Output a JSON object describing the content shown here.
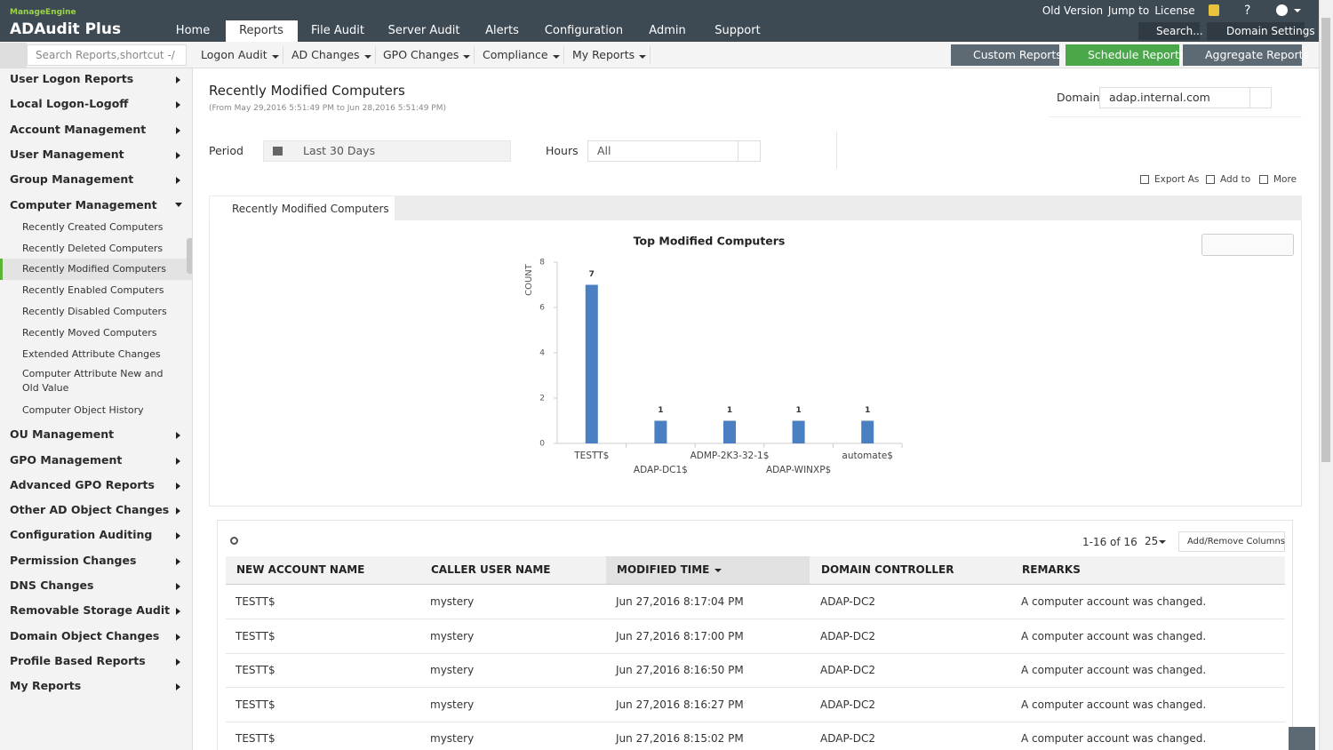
{
  "header": {
    "brand": "ManageEngine",
    "product": "ADAudit Plus",
    "nav": [
      "Home",
      "Reports",
      "File Audit",
      "Server Audit",
      "Alerts",
      "Configuration",
      "Admin",
      "Support"
    ],
    "top_links": [
      "Old Version",
      "Jump to",
      "License"
    ],
    "search": "Search...",
    "domain_settings": "Domain Settings"
  },
  "toolbar": {
    "search_placeholder": "Search Reports,shortcut -/",
    "menus": [
      "Logon Audit",
      "AD Changes",
      "GPO Changes",
      "Compliance",
      "My Reports"
    ],
    "buttons": [
      "Custom Reports",
      "Schedule Reports",
      "Aggregate Reports"
    ]
  },
  "sidebar": {
    "items": [
      {
        "label": "User Logon Reports"
      },
      {
        "label": "Local Logon-Logoff"
      },
      {
        "label": "Account Management"
      },
      {
        "label": "User Management"
      },
      {
        "label": "Group Management"
      },
      {
        "label": "Computer Management",
        "children": [
          "Recently Created Computers",
          "Recently Deleted Computers",
          "Recently Modified Computers",
          "Recently Enabled Computers",
          "Recently Disabled Computers",
          "Recently Moved Computers",
          "Extended Attribute Changes",
          "Computer Attribute New and Old Value",
          "Computer Object History"
        ]
      },
      {
        "label": "OU Management"
      },
      {
        "label": "GPO Management"
      },
      {
        "label": "Advanced GPO Reports"
      },
      {
        "label": "Other AD Object Changes"
      },
      {
        "label": "Configuration Auditing"
      },
      {
        "label": "Permission Changes"
      },
      {
        "label": "DNS Changes"
      },
      {
        "label": "Removable Storage Audit"
      },
      {
        "label": "Domain Object Changes"
      },
      {
        "label": "Profile Based Reports"
      },
      {
        "label": "My Reports"
      }
    ]
  },
  "report": {
    "title": "Recently Modified Computers",
    "range": "(From May 29,2016 5:51:49 PM to Jun 28,2016 5:51:49 PM)",
    "domain_label": "Domain",
    "domain": "adap.internal.com",
    "period_label": "Period",
    "period": "Last 30 Days",
    "hours_label": "Hours",
    "hours": "All",
    "actions": [
      "Export As",
      "Add to",
      "More"
    ],
    "tab": "Recently Modified Computers"
  },
  "chart_data": {
    "type": "bar",
    "title": "Top Modified Computers",
    "y_label": "COUNT",
    "categories": [
      "TESTT$",
      "ADAP-DC1$",
      "ADMP-2K3-32-1$",
      "ADAP-WINXP$",
      "automate$"
    ],
    "values": [
      7,
      1,
      1,
      1,
      1
    ],
    "color": "#4a7fc1",
    "ylim": [
      0,
      8
    ],
    "yticks": [
      0,
      2,
      4,
      6,
      8
    ]
  },
  "table": {
    "pagination": "1-16 of 16",
    "page_size": "25",
    "columns_button": "Add/Remove Columns",
    "columns": [
      "NEW ACCOUNT NAME",
      "CALLER USER NAME",
      "MODIFIED TIME",
      "DOMAIN CONTROLLER",
      "REMARKS"
    ],
    "rows": [
      [
        "TESTT$",
        "mystery",
        "Jun 27,2016 8:17:04 PM",
        "ADAP-DC2",
        "A computer account was changed."
      ],
      [
        "TESTT$",
        "mystery",
        "Jun 27,2016 8:17:00 PM",
        "ADAP-DC2",
        "A computer account was changed."
      ],
      [
        "TESTT$",
        "mystery",
        "Jun 27,2016 8:16:50 PM",
        "ADAP-DC2",
        "A computer account was changed."
      ],
      [
        "TESTT$",
        "mystery",
        "Jun 27,2016 8:16:27 PM",
        "ADAP-DC2",
        "A computer account was changed."
      ],
      [
        "TESTT$",
        "mystery",
        "Jun 27,2016 8:15:02 PM",
        "ADAP-DC2",
        "A computer account was changed."
      ]
    ]
  }
}
